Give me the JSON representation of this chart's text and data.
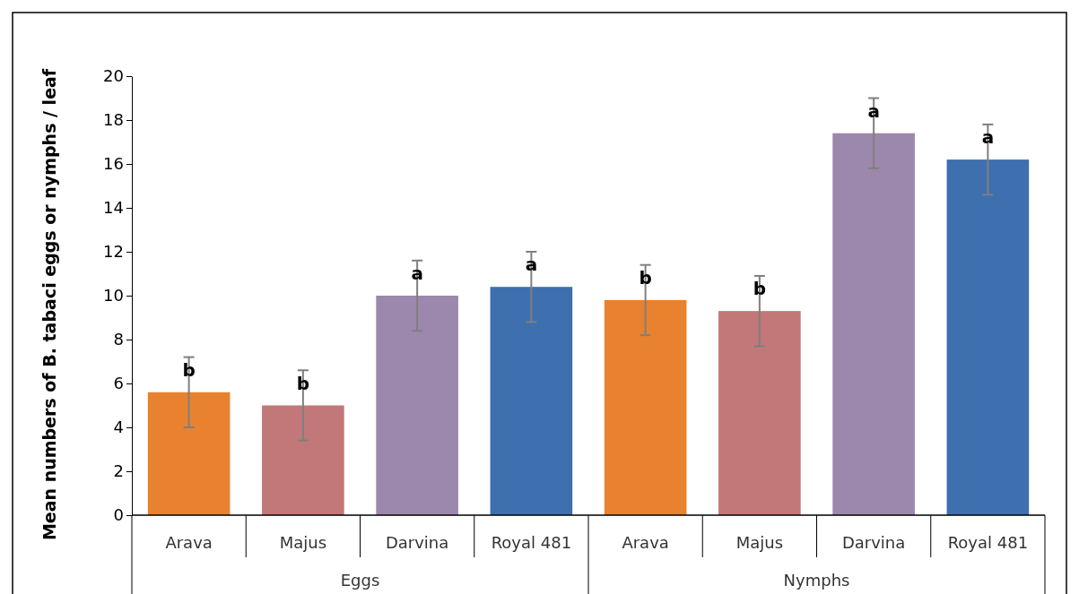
{
  "chart_data": {
    "type": "bar",
    "ylabel": "Mean numbers  of B. tabaci eggs or nymphs / leaf",
    "categories": [
      "Arava",
      "Majus",
      "Darvina",
      "Royal 481",
      "Arava",
      "Majus",
      "Darvina",
      "Royal 481"
    ],
    "values": [
      5.6,
      5.0,
      10.0,
      10.4,
      9.8,
      9.3,
      17.4,
      16.2
    ],
    "colors": [
      "#e8822f",
      "#c27878",
      "#9c87ad",
      "#3e6fae",
      "#e8822f",
      "#c27878",
      "#9c87ad",
      "#3e6fae"
    ],
    "errors": [
      1.6,
      1.6,
      1.6,
      1.6,
      1.6,
      1.6,
      1.6,
      1.6
    ],
    "value_labels": [
      "b",
      "b",
      "a",
      "a",
      "b",
      "b",
      "a",
      "a"
    ],
    "annotations": [
      {
        "text": "Eggs"
      },
      {
        "text": "Nymphs"
      }
    ],
    "ylim": [
      0,
      20
    ],
    "yticks": [
      0,
      2,
      4,
      6,
      8,
      10,
      12,
      14,
      16,
      18,
      20
    ],
    "grid": false
  }
}
